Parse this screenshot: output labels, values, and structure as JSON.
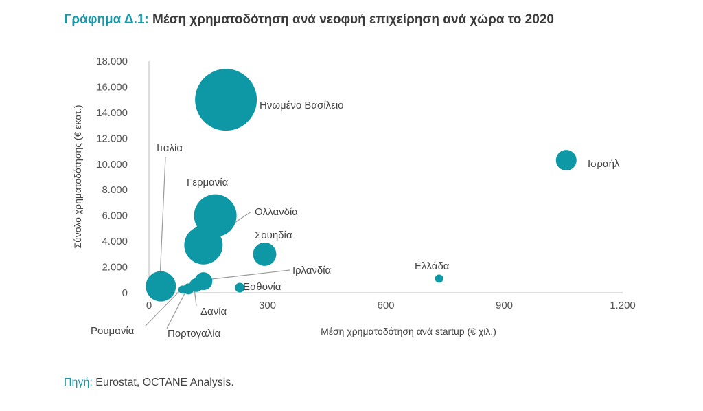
{
  "title": {
    "prefix": "Γράφημα Δ.1:",
    "text": "Μέση χρηματοδότηση ανά νεοφυή επιχείρηση ανά χώρα το 2020"
  },
  "source": {
    "label": "Πηγή:",
    "text": "Eurostat, OCTANE Analysis."
  },
  "colors": {
    "bubble": "#0e97a4",
    "title_accent": "#1a9aa8",
    "axis": "#bbbbbb",
    "leader": "#9a9a9a"
  },
  "chart_data": {
    "type": "scatter",
    "xlabel": "Μέση χρηματοδότηση ανά startup (€ χιλ.)",
    "ylabel": "Σύνολο χρηματοδότησης (€ εκατ.)",
    "xlim": [
      0,
      1200
    ],
    "ylim": [
      0,
      18000
    ],
    "x_ticks": [
      0,
      300,
      600,
      900,
      1200
    ],
    "x_tick_labels": [
      "0",
      "300",
      "600",
      "900",
      "1.200"
    ],
    "y_ticks": [
      0,
      2000,
      4000,
      6000,
      8000,
      10000,
      12000,
      14000,
      16000,
      18000
    ],
    "y_tick_labels": [
      "0",
      "2.000",
      "4.000",
      "6.000",
      "8.000",
      "10.000",
      "12.000",
      "14.000",
      "16.000",
      "18.000"
    ],
    "grid": false,
    "points": [
      {
        "name": "Ηνωμένο Βασίλειο",
        "x": 195,
        "y": 15000,
        "r": 45
      },
      {
        "name": "Ισραήλ",
        "x": 1057,
        "y": 10300,
        "r": 15
      },
      {
        "name": "Γερμανία",
        "x": 168,
        "y": 6000,
        "r": 31
      },
      {
        "name": "Ολλανδία",
        "x": 138,
        "y": 3700,
        "r": 28
      },
      {
        "name": "Σουηδία",
        "x": 293,
        "y": 3000,
        "r": 17
      },
      {
        "name": "Ιταλία",
        "x": 30,
        "y": 500,
        "r": 22
      },
      {
        "name": "Ιρλανδία",
        "x": 138,
        "y": 900,
        "r": 13
      },
      {
        "name": "Ελλάδα",
        "x": 735,
        "y": 1100,
        "r": 6
      },
      {
        "name": "Εσθονία",
        "x": 230,
        "y": 400,
        "r": 7
      },
      {
        "name": "Δανία",
        "x": 120,
        "y": 600,
        "r": 10
      },
      {
        "name": "Πορτογαλία",
        "x": 100,
        "y": 300,
        "r": 8
      },
      {
        "name": "Ρουμανία",
        "x": 85,
        "y": 250,
        "r": 6
      }
    ]
  }
}
